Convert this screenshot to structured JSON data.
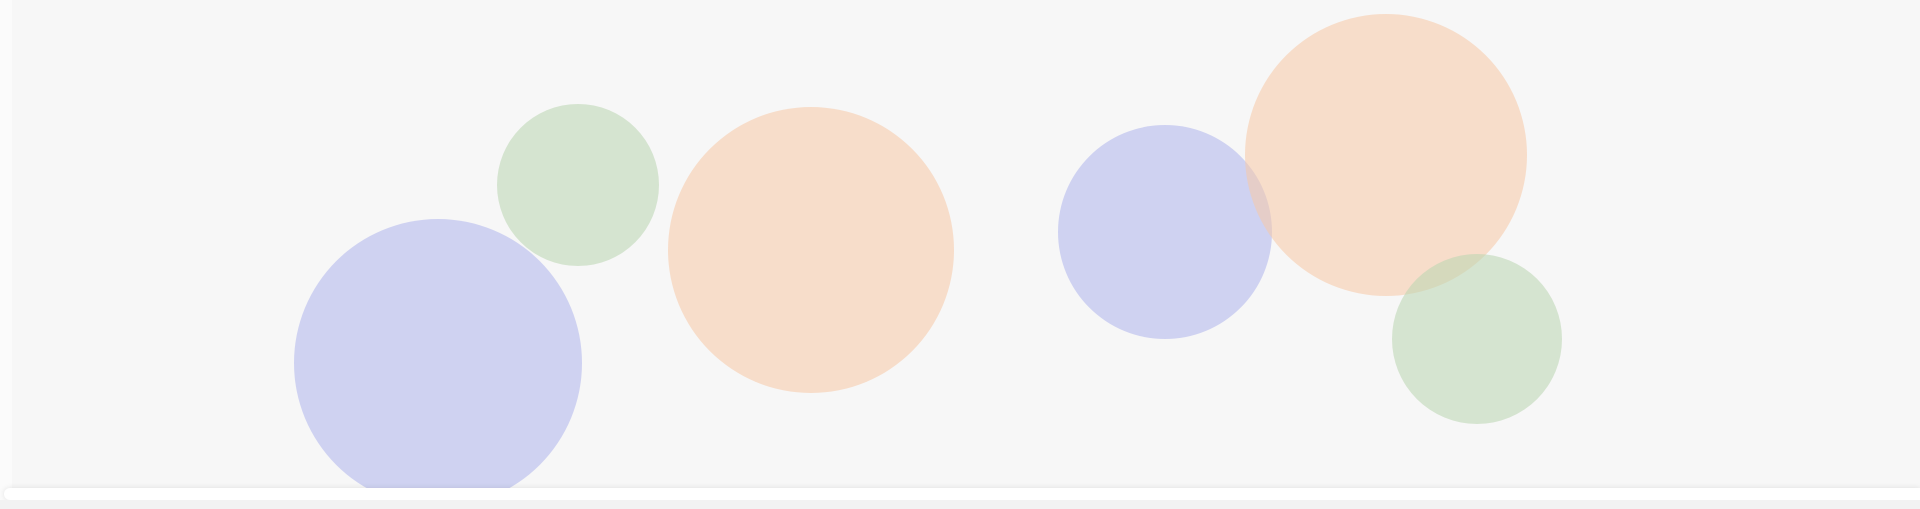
{
  "scene": {
    "background_color": "#f7f7f7",
    "bubbles": [
      {
        "name": "bubble-blue-large",
        "color": "blue"
      },
      {
        "name": "bubble-green-small-left",
        "color": "green"
      },
      {
        "name": "bubble-orange-center",
        "color": "orange"
      },
      {
        "name": "bubble-blue-right",
        "color": "blue"
      },
      {
        "name": "bubble-orange-top-right",
        "color": "orange"
      },
      {
        "name": "bubble-green-bottom-right",
        "color": "green"
      }
    ],
    "colors": {
      "blue": "#aeb4ec",
      "orange": "#f8c9a6",
      "green": "#b9d6b0"
    }
  }
}
